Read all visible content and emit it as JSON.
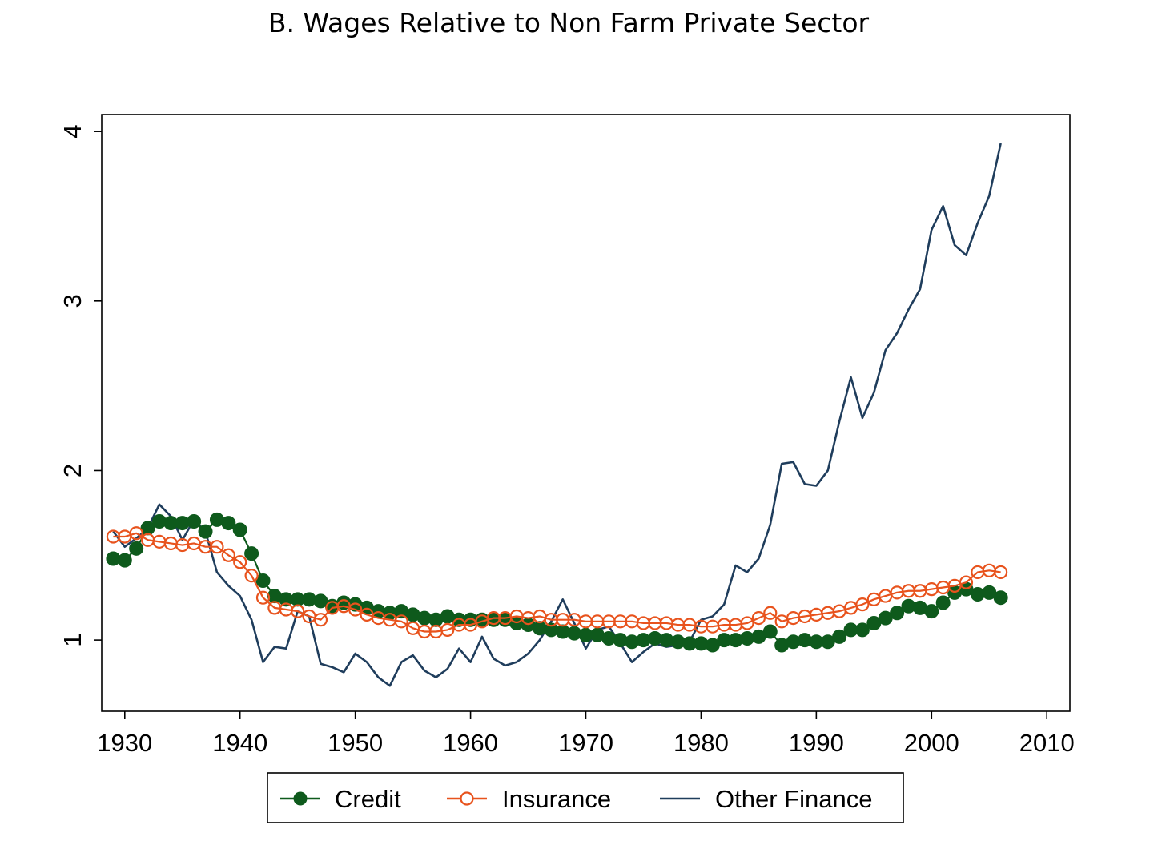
{
  "chart_data": {
    "type": "line",
    "title": "B. Wages Relative to Non Farm Private Sector",
    "xlabel": "",
    "ylabel": "",
    "xlim": [
      1928,
      2012
    ],
    "ylim": [
      0.58,
      4.1
    ],
    "x_ticks": [
      "1930",
      "1940",
      "1950",
      "1960",
      "1970",
      "1980",
      "1990",
      "2000",
      "2010"
    ],
    "y_ticks": [
      "1",
      "2",
      "3",
      "4"
    ],
    "grid": false,
    "legend_position": "bottom",
    "colors": {
      "credit": "#0e5a1c",
      "insurance": "#e8531d",
      "other_finance": "#1f3d5c",
      "axis": "#000000",
      "frame": "#000000",
      "background": "#ffffff"
    },
    "x": [
      1929,
      1930,
      1931,
      1932,
      1933,
      1934,
      1935,
      1936,
      1937,
      1938,
      1939,
      1940,
      1941,
      1942,
      1943,
      1944,
      1945,
      1946,
      1947,
      1948,
      1949,
      1950,
      1951,
      1952,
      1953,
      1954,
      1955,
      1956,
      1957,
      1958,
      1959,
      1960,
      1961,
      1962,
      1963,
      1964,
      1965,
      1966,
      1967,
      1968,
      1969,
      1970,
      1971,
      1972,
      1973,
      1974,
      1975,
      1976,
      1977,
      1978,
      1979,
      1980,
      1981,
      1982,
      1983,
      1984,
      1985,
      1986,
      1987,
      1988,
      1989,
      1990,
      1991,
      1992,
      1993,
      1994,
      1995,
      1996,
      1997,
      1998,
      1999,
      2000,
      2001,
      2002,
      2003,
      2004,
      2005,
      2006
    ],
    "series": [
      {
        "name": "Credit",
        "key": "credit",
        "marker": "filled-circle",
        "values": [
          1.48,
          1.47,
          1.54,
          1.66,
          1.7,
          1.69,
          1.69,
          1.7,
          1.64,
          1.71,
          1.69,
          1.65,
          1.51,
          1.35,
          1.26,
          1.24,
          1.24,
          1.24,
          1.23,
          1.2,
          1.22,
          1.21,
          1.19,
          1.17,
          1.16,
          1.17,
          1.15,
          1.13,
          1.12,
          1.14,
          1.12,
          1.12,
          1.12,
          1.12,
          1.12,
          1.1,
          1.09,
          1.07,
          1.06,
          1.05,
          1.04,
          1.03,
          1.03,
          1.01,
          1.0,
          0.99,
          1.0,
          1.01,
          1.0,
          0.99,
          0.98,
          0.98,
          0.97,
          1.0,
          1.0,
          1.01,
          1.02,
          1.05,
          0.97,
          0.99,
          1.0,
          0.99,
          0.99,
          1.02,
          1.06,
          1.06,
          1.1,
          1.13,
          1.16,
          1.2,
          1.19,
          1.17,
          1.22,
          1.28,
          1.3,
          1.27,
          1.28,
          1.25
        ]
      },
      {
        "name": "Insurance",
        "key": "insurance",
        "marker": "hollow-circle",
        "values": [
          1.61,
          1.61,
          1.63,
          1.59,
          1.58,
          1.57,
          1.56,
          1.57,
          1.55,
          1.55,
          1.5,
          1.46,
          1.38,
          1.25,
          1.19,
          1.18,
          1.17,
          1.14,
          1.12,
          1.19,
          1.2,
          1.18,
          1.15,
          1.13,
          1.12,
          1.11,
          1.07,
          1.05,
          1.05,
          1.06,
          1.09,
          1.09,
          1.11,
          1.13,
          1.13,
          1.14,
          1.13,
          1.14,
          1.12,
          1.12,
          1.12,
          1.11,
          1.11,
          1.11,
          1.11,
          1.11,
          1.1,
          1.1,
          1.1,
          1.09,
          1.09,
          1.08,
          1.08,
          1.09,
          1.09,
          1.1,
          1.13,
          1.16,
          1.11,
          1.13,
          1.14,
          1.15,
          1.16,
          1.17,
          1.19,
          1.21,
          1.24,
          1.26,
          1.28,
          1.29,
          1.29,
          1.3,
          1.31,
          1.32,
          1.34,
          1.4,
          1.41,
          1.4
        ]
      },
      {
        "name": "Other Finance",
        "key": "other_finance",
        "marker": "none",
        "values": [
          1.64,
          1.55,
          1.6,
          1.66,
          1.8,
          1.73,
          1.59,
          1.71,
          1.64,
          1.4,
          1.32,
          1.26,
          1.12,
          0.87,
          0.96,
          0.95,
          1.17,
          1.14,
          0.86,
          0.84,
          0.81,
          0.92,
          0.87,
          0.78,
          0.73,
          0.87,
          0.91,
          0.82,
          0.78,
          0.83,
          0.95,
          0.87,
          1.02,
          0.89,
          0.85,
          0.87,
          0.92,
          1.0,
          1.11,
          1.24,
          1.1,
          0.95,
          1.06,
          1.08,
          0.98,
          0.87,
          0.93,
          0.98,
          0.96,
          0.97,
          0.99,
          1.12,
          1.14,
          1.21,
          1.44,
          1.4,
          1.48,
          1.68,
          2.04,
          2.05,
          1.92,
          1.91,
          2.0,
          2.29,
          2.55,
          2.31,
          2.46,
          2.71,
          2.81,
          2.95,
          3.07,
          3.42,
          3.56,
          3.33,
          3.27,
          3.46,
          3.62,
          3.93
        ]
      }
    ]
  }
}
